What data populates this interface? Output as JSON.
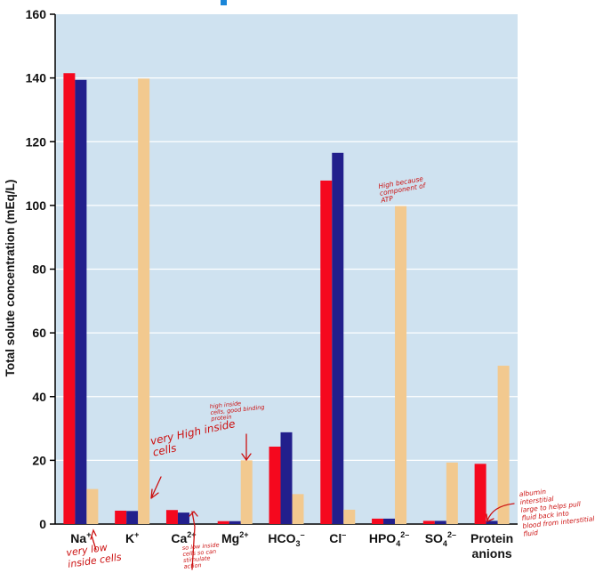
{
  "chart_data": {
    "type": "bar",
    "ylabel": "Total solute concentration (mEq/L)",
    "ylim": [
      0,
      160
    ],
    "yticks": [
      0,
      20,
      40,
      60,
      80,
      100,
      120,
      140,
      160
    ],
    "grid": true,
    "categories": [
      {
        "base": "Na",
        "sup": "+",
        "sub": ""
      },
      {
        "base": "K",
        "sup": "+",
        "sub": ""
      },
      {
        "base": "Ca",
        "sup": "2+",
        "sub": ""
      },
      {
        "base": "Mg",
        "sup": "2+",
        "sub": ""
      },
      {
        "base": "HCO",
        "sub": "3",
        "sup": "–"
      },
      {
        "base": "Cl",
        "sup": "–",
        "sub": ""
      },
      {
        "base": "HPO",
        "sub": "4",
        "sup": "2–"
      },
      {
        "base": "SO",
        "sub": "4",
        "sup": "2–"
      },
      {
        "base": "Protein",
        "line2": "anions",
        "sup": "",
        "sub": ""
      }
    ],
    "series": [
      {
        "color": "#f5081e",
        "values": [
          141.5,
          4.2,
          4.4,
          0.9,
          24.3,
          107.8,
          1.7,
          1.0,
          18.9
        ]
      },
      {
        "color": "#221f8c",
        "values": [
          139.4,
          4.1,
          3.6,
          0.9,
          28.8,
          116.5,
          1.7,
          1.0,
          1.0
        ]
      },
      {
        "color": "#f2c98f",
        "values": [
          11.0,
          139.8,
          0.0,
          20.0,
          9.4,
          4.5,
          99.8,
          19.3,
          49.7
        ]
      }
    ],
    "colors": {
      "plot_bg": "#cfe2f0",
      "grid": "#ffffff",
      "top_marker": "#1a86d8"
    },
    "annotations": [
      {
        "id": "k-note",
        "lines": [
          "very High inside",
          "cells"
        ]
      },
      {
        "id": "na-note",
        "lines": [
          "very low",
          "inside cells"
        ]
      },
      {
        "id": "mg-note",
        "lines": [
          "high inside",
          "cells, good binding",
          "protein"
        ]
      },
      {
        "id": "ca-note",
        "lines": [
          "so low inside",
          "cells so can",
          "stimulate",
          "action"
        ]
      },
      {
        "id": "hpo4-note",
        "lines": [
          "High because",
          "component of",
          "ATP"
        ]
      },
      {
        "id": "protein-note",
        "lines": [
          "albumin",
          "interstitial",
          "large to helps pull",
          "fluid back into",
          "blood from interstitial",
          "fluid"
        ]
      }
    ]
  }
}
